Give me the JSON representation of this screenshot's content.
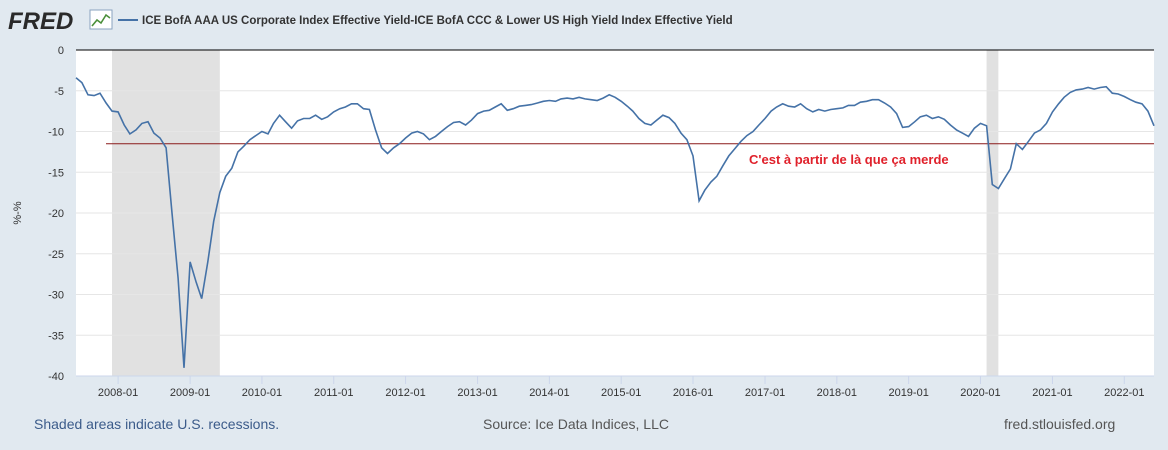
{
  "header": {
    "logo_text": "FRED",
    "series_label": "ICE BofA AAA US Corporate Index Effective Yield-ICE BofA CCC & Lower US High Yield Index Effective Yield",
    "line_color": "#4572a7"
  },
  "annotation": {
    "text": "C'est à partir de là que ça merde",
    "text_color": "#e0212b",
    "line_value": -11.5,
    "line_color": "#8b1a1a"
  },
  "footer": {
    "recessions_note": "Shaded areas indicate U.S. recessions.",
    "source": "Source: Ice Data Indices, LLC",
    "site": "fred.stlouisfed.org"
  },
  "chart_data": {
    "type": "line",
    "title": "",
    "xlabel": "",
    "ylabel": "%-%",
    "ylim": [
      -40,
      0
    ],
    "yticks": [
      0,
      -5,
      -10,
      -15,
      -20,
      -25,
      -30,
      -35,
      -40
    ],
    "xlim": [
      "2007-06-01",
      "2022-06-01"
    ],
    "xticks": [
      "2008-01",
      "2009-01",
      "2010-01",
      "2011-01",
      "2012-01",
      "2013-01",
      "2014-01",
      "2015-01",
      "2016-01",
      "2017-01",
      "2018-01",
      "2019-01",
      "2020-01",
      "2021-01",
      "2022-01"
    ],
    "recessions": [
      {
        "start": "2007-12-01",
        "end": "2009-06-01"
      },
      {
        "start": "2020-02-01",
        "end": "2020-04-01"
      }
    ],
    "grid": true,
    "legend": "top-left",
    "series": [
      {
        "name": "ICE BofA AAA US Corporate Index Effective Yield-ICE BofA CCC & Lower US High Yield Index Effective Yield",
        "color": "#4572a7",
        "points": [
          [
            "2007-06-01",
            -3.4
          ],
          [
            "2007-07-01",
            -4.0
          ],
          [
            "2007-08-01",
            -5.5
          ],
          [
            "2007-09-01",
            -5.6
          ],
          [
            "2007-10-01",
            -5.3
          ],
          [
            "2007-11-01",
            -6.5
          ],
          [
            "2007-12-01",
            -7.5
          ],
          [
            "2008-01-01",
            -7.6
          ],
          [
            "2008-02-01",
            -9.2
          ],
          [
            "2008-03-01",
            -10.3
          ],
          [
            "2008-04-01",
            -9.8
          ],
          [
            "2008-05-01",
            -9.0
          ],
          [
            "2008-06-01",
            -8.8
          ],
          [
            "2008-07-01",
            -10.2
          ],
          [
            "2008-08-01",
            -10.8
          ],
          [
            "2008-09-01",
            -12.0
          ],
          [
            "2008-10-01",
            -20.0
          ],
          [
            "2008-11-01",
            -28.0
          ],
          [
            "2008-12-01",
            -39.0
          ],
          [
            "2009-01-01",
            -26.0
          ],
          [
            "2009-02-01",
            -28.5
          ],
          [
            "2009-03-01",
            -30.5
          ],
          [
            "2009-04-01",
            -26.0
          ],
          [
            "2009-05-01",
            -21.0
          ],
          [
            "2009-06-01",
            -17.5
          ],
          [
            "2009-07-01",
            -15.5
          ],
          [
            "2009-08-01",
            -14.5
          ],
          [
            "2009-09-01",
            -12.5
          ],
          [
            "2009-10-01",
            -11.8
          ],
          [
            "2009-11-01",
            -11.0
          ],
          [
            "2009-12-01",
            -10.5
          ],
          [
            "2010-01-01",
            -10.0
          ],
          [
            "2010-02-01",
            -10.3
          ],
          [
            "2010-03-01",
            -9.0
          ],
          [
            "2010-04-01",
            -8.0
          ],
          [
            "2010-05-01",
            -8.8
          ],
          [
            "2010-06-01",
            -9.6
          ],
          [
            "2010-07-01",
            -8.7
          ],
          [
            "2010-08-01",
            -8.4
          ],
          [
            "2010-09-01",
            -8.4
          ],
          [
            "2010-10-01",
            -8.0
          ],
          [
            "2010-11-01",
            -8.5
          ],
          [
            "2010-12-01",
            -8.2
          ],
          [
            "2011-01-01",
            -7.6
          ],
          [
            "2011-02-01",
            -7.2
          ],
          [
            "2011-03-01",
            -7.0
          ],
          [
            "2011-04-01",
            -6.6
          ],
          [
            "2011-05-01",
            -6.6
          ],
          [
            "2011-06-01",
            -7.2
          ],
          [
            "2011-07-01",
            -7.3
          ],
          [
            "2011-08-01",
            -9.8
          ],
          [
            "2011-09-01",
            -12.0
          ],
          [
            "2011-10-01",
            -12.7
          ],
          [
            "2011-11-01",
            -12.0
          ],
          [
            "2011-12-01",
            -11.5
          ],
          [
            "2012-01-01",
            -10.8
          ],
          [
            "2012-02-01",
            -10.2
          ],
          [
            "2012-03-01",
            -10.0
          ],
          [
            "2012-04-01",
            -10.3
          ],
          [
            "2012-05-01",
            -11.0
          ],
          [
            "2012-06-01",
            -10.6
          ],
          [
            "2012-07-01",
            -10.0
          ],
          [
            "2012-08-01",
            -9.4
          ],
          [
            "2012-09-01",
            -8.9
          ],
          [
            "2012-10-01",
            -8.8
          ],
          [
            "2012-11-01",
            -9.2
          ],
          [
            "2012-12-01",
            -8.6
          ],
          [
            "2013-01-01",
            -7.8
          ],
          [
            "2013-02-01",
            -7.5
          ],
          [
            "2013-03-01",
            -7.4
          ],
          [
            "2013-04-01",
            -7.0
          ],
          [
            "2013-05-01",
            -6.6
          ],
          [
            "2013-06-01",
            -7.4
          ],
          [
            "2013-07-01",
            -7.2
          ],
          [
            "2013-08-01",
            -6.9
          ],
          [
            "2013-09-01",
            -6.8
          ],
          [
            "2013-10-01",
            -6.7
          ],
          [
            "2013-11-01",
            -6.5
          ],
          [
            "2013-12-01",
            -6.3
          ],
          [
            "2014-01-01",
            -6.2
          ],
          [
            "2014-02-01",
            -6.3
          ],
          [
            "2014-03-01",
            -6.0
          ],
          [
            "2014-04-01",
            -5.9
          ],
          [
            "2014-05-01",
            -6.0
          ],
          [
            "2014-06-01",
            -5.8
          ],
          [
            "2014-07-01",
            -6.0
          ],
          [
            "2014-08-01",
            -6.1
          ],
          [
            "2014-09-01",
            -6.2
          ],
          [
            "2014-10-01",
            -5.9
          ],
          [
            "2014-11-01",
            -5.5
          ],
          [
            "2014-12-01",
            -5.8
          ],
          [
            "2015-01-01",
            -6.3
          ],
          [
            "2015-02-01",
            -6.9
          ],
          [
            "2015-03-01",
            -7.5
          ],
          [
            "2015-04-01",
            -8.4
          ],
          [
            "2015-05-01",
            -9.0
          ],
          [
            "2015-06-01",
            -9.2
          ],
          [
            "2015-07-01",
            -8.6
          ],
          [
            "2015-08-01",
            -8.0
          ],
          [
            "2015-09-01",
            -8.3
          ],
          [
            "2015-10-01",
            -9.0
          ],
          [
            "2015-11-01",
            -10.2
          ],
          [
            "2015-12-01",
            -11.0
          ],
          [
            "2016-01-01",
            -13.0
          ],
          [
            "2016-02-01",
            -18.5
          ],
          [
            "2016-03-01",
            -17.2
          ],
          [
            "2016-04-01",
            -16.2
          ],
          [
            "2016-05-01",
            -15.5
          ],
          [
            "2016-06-01",
            -14.2
          ],
          [
            "2016-07-01",
            -13.0
          ],
          [
            "2016-08-01",
            -12.1
          ],
          [
            "2016-09-01",
            -11.2
          ],
          [
            "2016-10-01",
            -10.5
          ],
          [
            "2016-11-01",
            -10.0
          ],
          [
            "2016-12-01",
            -9.2
          ],
          [
            "2017-01-01",
            -8.4
          ],
          [
            "2017-02-01",
            -7.5
          ],
          [
            "2017-03-01",
            -7.0
          ],
          [
            "2017-04-01",
            -6.6
          ],
          [
            "2017-05-01",
            -6.9
          ],
          [
            "2017-06-01",
            -7.0
          ],
          [
            "2017-07-01",
            -6.6
          ],
          [
            "2017-08-01",
            -7.2
          ],
          [
            "2017-09-01",
            -7.6
          ],
          [
            "2017-10-01",
            -7.3
          ],
          [
            "2017-11-01",
            -7.5
          ],
          [
            "2017-12-01",
            -7.3
          ],
          [
            "2018-01-01",
            -7.2
          ],
          [
            "2018-02-01",
            -7.1
          ],
          [
            "2018-03-01",
            -6.8
          ],
          [
            "2018-04-01",
            -6.8
          ],
          [
            "2018-05-01",
            -6.4
          ],
          [
            "2018-06-01",
            -6.3
          ],
          [
            "2018-07-01",
            -6.1
          ],
          [
            "2018-08-01",
            -6.1
          ],
          [
            "2018-09-01",
            -6.5
          ],
          [
            "2018-10-01",
            -7.0
          ],
          [
            "2018-11-01",
            -7.8
          ],
          [
            "2018-12-01",
            -9.5
          ],
          [
            "2019-01-01",
            -9.4
          ],
          [
            "2019-02-01",
            -8.8
          ],
          [
            "2019-03-01",
            -8.2
          ],
          [
            "2019-04-01",
            -8.0
          ],
          [
            "2019-05-01",
            -8.4
          ],
          [
            "2019-06-01",
            -8.2
          ],
          [
            "2019-07-01",
            -8.5
          ],
          [
            "2019-08-01",
            -9.2
          ],
          [
            "2019-09-01",
            -9.8
          ],
          [
            "2019-10-01",
            -10.2
          ],
          [
            "2019-11-01",
            -10.6
          ],
          [
            "2019-12-01",
            -9.6
          ],
          [
            "2020-01-01",
            -9.0
          ],
          [
            "2020-02-01",
            -9.3
          ],
          [
            "2020-03-01",
            -16.5
          ],
          [
            "2020-04-01",
            -17.0
          ],
          [
            "2020-05-01",
            -15.8
          ],
          [
            "2020-06-01",
            -14.6
          ],
          [
            "2020-07-01",
            -11.5
          ],
          [
            "2020-08-01",
            -12.2
          ],
          [
            "2020-09-01",
            -11.2
          ],
          [
            "2020-10-01",
            -10.2
          ],
          [
            "2020-11-01",
            -9.8
          ],
          [
            "2020-12-01",
            -9.0
          ],
          [
            "2021-01-01",
            -7.6
          ],
          [
            "2021-02-01",
            -6.6
          ],
          [
            "2021-03-01",
            -5.8
          ],
          [
            "2021-04-01",
            -5.2
          ],
          [
            "2021-05-01",
            -4.9
          ],
          [
            "2021-06-01",
            -4.8
          ],
          [
            "2021-07-01",
            -4.6
          ],
          [
            "2021-08-01",
            -4.8
          ],
          [
            "2021-09-01",
            -4.6
          ],
          [
            "2021-10-01",
            -4.5
          ],
          [
            "2021-11-01",
            -5.3
          ],
          [
            "2021-12-01",
            -5.4
          ],
          [
            "2022-01-01",
            -5.7
          ],
          [
            "2022-02-01",
            -6.1
          ],
          [
            "2022-03-01",
            -6.4
          ],
          [
            "2022-04-01",
            -6.6
          ],
          [
            "2022-05-01",
            -7.5
          ],
          [
            "2022-06-01",
            -9.3
          ]
        ]
      }
    ]
  }
}
